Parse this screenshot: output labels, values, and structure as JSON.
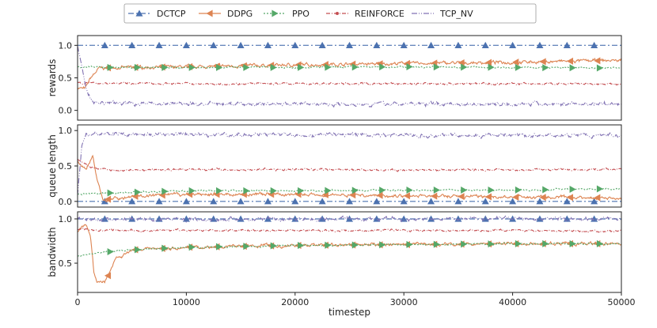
{
  "chart_data": {
    "type": "line",
    "xlabel": "timestep",
    "xlim": [
      0,
      50000
    ],
    "xticks": [
      "0",
      "10000",
      "20000",
      "30000",
      "40000",
      "50000"
    ],
    "legend": {
      "placement": "top-center",
      "entries": [
        "DCTCP",
        "DDPG",
        "PPO",
        "REINFORCE",
        "TCP_NV"
      ]
    },
    "colors": {
      "DCTCP": "#4c72b0",
      "DDPG": "#dd8452",
      "PPO": "#55a868",
      "REINFORCE": "#c44e52",
      "TCP_NV": "#8172b3"
    },
    "panels": [
      {
        "ylabel": "rewards",
        "ylim": [
          -0.15,
          1.15
        ],
        "yticks": [
          "0.0",
          "0.5",
          "1.0"
        ],
        "series": [
          {
            "name": "DCTCP",
            "x": [
              0,
              50000
            ],
            "y": [
              1.0,
              1.0
            ]
          },
          {
            "name": "DDPG",
            "x": [
              0,
              700,
              1200,
              2000,
              5000,
              10000,
              20000,
              30000,
              40000,
              50000
            ],
            "y": [
              0.35,
              0.33,
              0.5,
              0.65,
              0.66,
              0.67,
              0.7,
              0.72,
              0.74,
              0.77
            ]
          },
          {
            "name": "PPO",
            "x": [
              0,
              2000,
              10000,
              20000,
              30000,
              40000,
              50000
            ],
            "y": [
              0.67,
              0.66,
              0.66,
              0.66,
              0.67,
              0.66,
              0.65
            ]
          },
          {
            "name": "REINFORCE",
            "x": [
              0,
              1000,
              10000,
              20000,
              30000,
              40000,
              50000
            ],
            "y": [
              0.43,
              0.42,
              0.41,
              0.41,
              0.41,
              0.41,
              0.4
            ]
          },
          {
            "name": "TCP_NV",
            "x": [
              0,
              300,
              800,
              1500,
              10000,
              20000,
              30000,
              40000,
              50000
            ],
            "y": [
              1.0,
              0.75,
              0.3,
              0.12,
              0.1,
              0.1,
              0.1,
              0.1,
              0.1
            ]
          }
        ]
      },
      {
        "ylabel": "queue length",
        "ylim": [
          -0.08,
          1.08
        ],
        "yticks": [
          "0.0",
          "0.5",
          "1.0"
        ],
        "series": [
          {
            "name": "DCTCP",
            "x": [
              0,
              50000
            ],
            "y": [
              0.0,
              0.0
            ]
          },
          {
            "name": "DDPG",
            "x": [
              0,
              800,
              1400,
              1800,
              2300,
              3000,
              5000,
              10000,
              20000,
              30000,
              40000,
              50000
            ],
            "y": [
              0.55,
              0.45,
              0.65,
              0.3,
              0.03,
              0.03,
              0.07,
              0.1,
              0.1,
              0.08,
              0.06,
              0.05
            ]
          },
          {
            "name": "PPO",
            "x": [
              0,
              3000,
              10000,
              20000,
              30000,
              40000,
              50000
            ],
            "y": [
              0.1,
              0.12,
              0.15,
              0.15,
              0.16,
              0.16,
              0.18
            ]
          },
          {
            "name": "REINFORCE",
            "x": [
              0,
              1000,
              3000,
              10000,
              20000,
              30000,
              40000,
              50000
            ],
            "y": [
              0.6,
              0.5,
              0.44,
              0.45,
              0.45,
              0.44,
              0.45,
              0.45
            ]
          },
          {
            "name": "TCP_NV",
            "x": [
              0,
              400,
              800,
              10000,
              20000,
              30000,
              40000,
              50000
            ],
            "y": [
              0.1,
              0.8,
              0.95,
              0.94,
              0.94,
              0.94,
              0.93,
              0.93
            ]
          }
        ]
      },
      {
        "ylabel": "bandwidth",
        "ylim": [
          0.17,
          1.08
        ],
        "yticks": [
          "0.5",
          "1.0"
        ],
        "series": [
          {
            "name": "DCTCP",
            "x": [
              0,
              50000
            ],
            "y": [
              1.0,
              1.0
            ]
          },
          {
            "name": "DDPG",
            "x": [
              0,
              700,
              1200,
              1500,
              1800,
              2500,
              3000,
              3500,
              5000,
              10000,
              20000,
              30000,
              40000,
              50000
            ],
            "y": [
              0.85,
              0.95,
              0.8,
              0.4,
              0.28,
              0.3,
              0.4,
              0.55,
              0.65,
              0.68,
              0.7,
              0.71,
              0.72,
              0.72
            ]
          },
          {
            "name": "PPO",
            "x": [
              0,
              2000,
              5000,
              10000,
              20000,
              30000,
              40000,
              50000
            ],
            "y": [
              0.58,
              0.62,
              0.65,
              0.68,
              0.7,
              0.71,
              0.72,
              0.72
            ]
          },
          {
            "name": "REINFORCE",
            "x": [
              0,
              2000,
              10000,
              20000,
              30000,
              40000,
              50000
            ],
            "y": [
              0.88,
              0.87,
              0.87,
              0.87,
              0.87,
              0.87,
              0.86
            ]
          },
          {
            "name": "TCP_NV",
            "x": [
              0,
              50000
            ],
            "y": [
              1.0,
              1.0
            ]
          }
        ]
      }
    ]
  }
}
